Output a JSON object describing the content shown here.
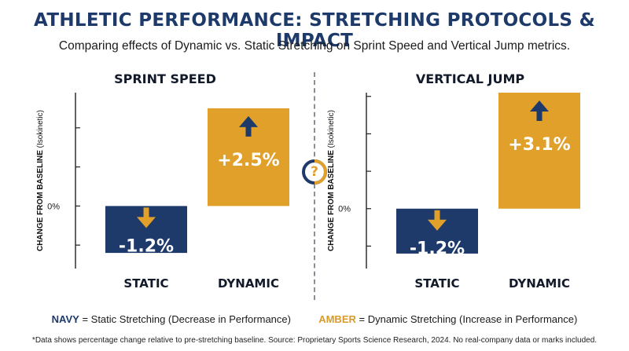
{
  "header": {
    "title": "ATHLETIC PERFORMANCE: STRETCHING PROTOCOLS & IMPACT",
    "subtitle": "Comparing effects of Dynamic vs. Static Stretching on Sprint Speed and Vertical Jump metrics."
  },
  "center_badge": {
    "symbol": "?"
  },
  "colors": {
    "navy": "#1d3a6b",
    "amber": "#e0a02a"
  },
  "icons": {
    "decrease": "arrow-down-icon",
    "increase": "arrow-up-icon"
  },
  "chart_data": [
    {
      "type": "bar",
      "title": "SPRINT SPEED",
      "ylabel": "CHANGE FROM BASELINE",
      "ylabel_suffix": "(Isokinetic)",
      "zero_label": "0%",
      "categories": [
        "STATIC",
        "DYNAMIC"
      ],
      "values": [
        -1.2,
        2.5
      ],
      "value_labels": [
        "-1.2%",
        "+2.5%"
      ],
      "ylim": [
        -1.6,
        2.9
      ]
    },
    {
      "type": "bar",
      "title": "VERTICAL JUMP",
      "ylabel": "CHANGE FROM BASELINE",
      "ylabel_suffix": "(Isokinetic)",
      "zero_label": "0%",
      "categories": [
        "STATIC",
        "DYNAMIC"
      ],
      "values": [
        -1.2,
        3.1
      ],
      "value_labels": [
        "-1.2%",
        "+3.1%"
      ],
      "ylim": [
        -1.6,
        3.1
      ]
    }
  ],
  "legend": {
    "navy_key": "NAVY",
    "navy_text": " = Static Stretching (Decrease in Performance)",
    "amber_key": "AMBER",
    "amber_text": " = Dynamic Stretching (Increase in Performance)"
  },
  "footnote": "*Data shows percentage change relative to pre-stretching baseline. Source: Proprietary Sports Science Research, 2024. No real-company data or marks included."
}
